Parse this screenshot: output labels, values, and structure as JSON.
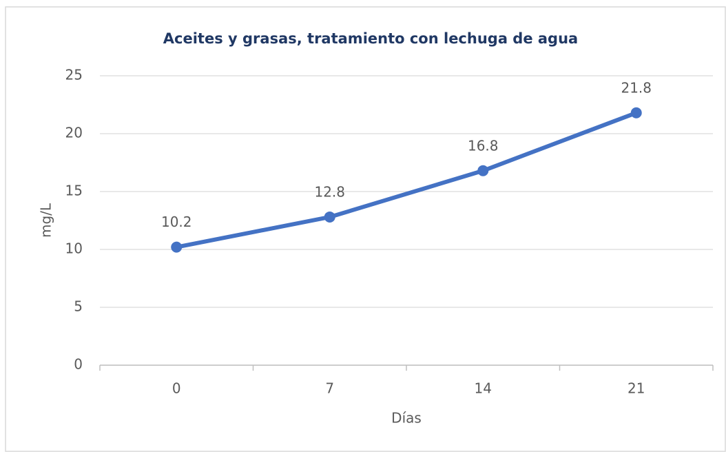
{
  "chart_data": {
    "type": "line",
    "title": "Aceites y grasas, tratamiento con lechuga de agua",
    "x_label": "Días",
    "y_label": "mg/L",
    "categories": [
      "0",
      "7",
      "14",
      "21"
    ],
    "series": [
      {
        "name": "Aceites y grasas",
        "color": "#4472c4",
        "values": [
          10.2,
          12.8,
          16.8,
          21.8
        ]
      }
    ],
    "ylim": [
      0,
      25
    ],
    "yticks": [
      0,
      5,
      10,
      15,
      20,
      25
    ],
    "grid": true,
    "data_labels": true
  }
}
